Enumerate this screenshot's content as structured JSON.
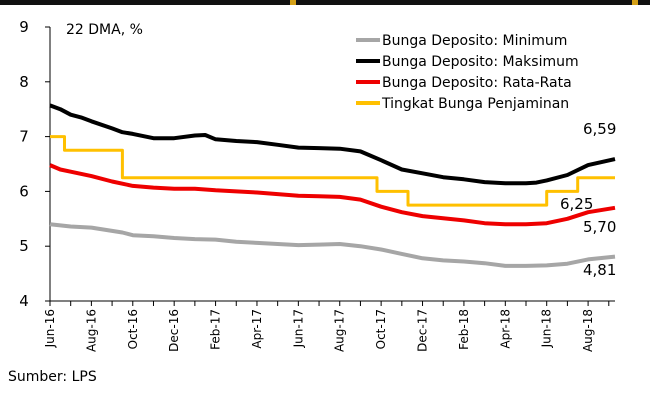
{
  "chart_data": {
    "type": "line",
    "ylabel": "22 DMA, %",
    "ylim": [
      4,
      9
    ],
    "yticks": [
      4,
      5,
      6,
      7,
      8,
      9
    ],
    "x_tick_labels": [
      "Jun-16",
      "Aug-16",
      "Oct-16",
      "Dec-16",
      "Feb-17",
      "Apr-17",
      "Jun-17",
      "Aug-17",
      "Oct-17",
      "Dec-17",
      "Feb-18",
      "Apr-18",
      "Jun-18",
      "Aug-18"
    ],
    "x_tick_months": [
      0,
      2,
      4,
      6,
      8,
      10,
      12,
      14,
      16,
      18,
      20,
      22,
      24,
      26
    ],
    "x_range_months": [
      0,
      27.3
    ],
    "legend_position": "top-right",
    "series": [
      {
        "name": "Bunga Deposito: Minimum",
        "color": "#a6a6a6",
        "style": "smooth",
        "end_label": "4,81",
        "points": [
          [
            0,
            5.4
          ],
          [
            1,
            5.36
          ],
          [
            2,
            5.34
          ],
          [
            3,
            5.28
          ],
          [
            3.5,
            5.25
          ],
          [
            4,
            5.2
          ],
          [
            5,
            5.18
          ],
          [
            6,
            5.15
          ],
          [
            7,
            5.13
          ],
          [
            8,
            5.12
          ],
          [
            9,
            5.08
          ],
          [
            10,
            5.06
          ],
          [
            11,
            5.04
          ],
          [
            12,
            5.02
          ],
          [
            13,
            5.03
          ],
          [
            14,
            5.04
          ],
          [
            15,
            5.0
          ],
          [
            16,
            4.94
          ],
          [
            17,
            4.86
          ],
          [
            18,
            4.78
          ],
          [
            19,
            4.74
          ],
          [
            20,
            4.72
          ],
          [
            21,
            4.69
          ],
          [
            22,
            4.64
          ],
          [
            23,
            4.64
          ],
          [
            24,
            4.65
          ],
          [
            25,
            4.68
          ],
          [
            26,
            4.76
          ],
          [
            27.3,
            4.81
          ]
        ]
      },
      {
        "name": "Bunga Deposito: Maksimum",
        "color": "#000000",
        "style": "smooth",
        "end_label": "6,59",
        "points": [
          [
            0,
            7.57
          ],
          [
            0.5,
            7.5
          ],
          [
            1,
            7.4
          ],
          [
            1.5,
            7.35
          ],
          [
            2,
            7.28
          ],
          [
            3,
            7.15
          ],
          [
            3.5,
            7.08
          ],
          [
            4,
            7.05
          ],
          [
            5,
            6.97
          ],
          [
            6,
            6.97
          ],
          [
            7,
            7.02
          ],
          [
            7.5,
            7.03
          ],
          [
            8,
            6.95
          ],
          [
            9,
            6.92
          ],
          [
            10,
            6.9
          ],
          [
            11,
            6.85
          ],
          [
            12,
            6.8
          ],
          [
            13,
            6.79
          ],
          [
            14,
            6.78
          ],
          [
            15,
            6.73
          ],
          [
            16,
            6.57
          ],
          [
            17,
            6.4
          ],
          [
            18,
            6.33
          ],
          [
            19,
            6.26
          ],
          [
            20,
            6.22
          ],
          [
            21,
            6.17
          ],
          [
            22,
            6.15
          ],
          [
            23,
            6.15
          ],
          [
            23.5,
            6.16
          ],
          [
            24,
            6.2
          ],
          [
            25,
            6.3
          ],
          [
            26,
            6.48
          ],
          [
            27.3,
            6.59
          ]
        ]
      },
      {
        "name": "Bunga Deposito: Rata-Rata",
        "color": "#ee0000",
        "style": "smooth",
        "end_label": "5,70",
        "points": [
          [
            0,
            6.48
          ],
          [
            0.5,
            6.4
          ],
          [
            1,
            6.36
          ],
          [
            2,
            6.28
          ],
          [
            3,
            6.18
          ],
          [
            4,
            6.1
          ],
          [
            5,
            6.07
          ],
          [
            6,
            6.05
          ],
          [
            7,
            6.05
          ],
          [
            8,
            6.02
          ],
          [
            9,
            6.0
          ],
          [
            10,
            5.98
          ],
          [
            11,
            5.95
          ],
          [
            12,
            5.92
          ],
          [
            13,
            5.91
          ],
          [
            14,
            5.9
          ],
          [
            15,
            5.85
          ],
          [
            16,
            5.72
          ],
          [
            17,
            5.62
          ],
          [
            18,
            5.55
          ],
          [
            19,
            5.51
          ],
          [
            20,
            5.47
          ],
          [
            21,
            5.42
          ],
          [
            22,
            5.4
          ],
          [
            23,
            5.4
          ],
          [
            24,
            5.42
          ],
          [
            25,
            5.5
          ],
          [
            26,
            5.62
          ],
          [
            27.3,
            5.7
          ]
        ]
      },
      {
        "name": "Tingkat Bunga Penjaminan",
        "color": "#ffc000",
        "style": "step",
        "end_label": "6,25",
        "points": [
          [
            0,
            7.0
          ],
          [
            0.7,
            7.0
          ],
          [
            0.7,
            6.75
          ],
          [
            3.5,
            6.75
          ],
          [
            3.5,
            6.25
          ],
          [
            15.8,
            6.25
          ],
          [
            15.8,
            6.0
          ],
          [
            17.3,
            6.0
          ],
          [
            17.3,
            5.75
          ],
          [
            24.0,
            5.75
          ],
          [
            24.0,
            6.0
          ],
          [
            25.5,
            6.0
          ],
          [
            25.5,
            6.25
          ],
          [
            27.3,
            6.25
          ]
        ]
      }
    ]
  },
  "source_text": "Sumber: LPS"
}
